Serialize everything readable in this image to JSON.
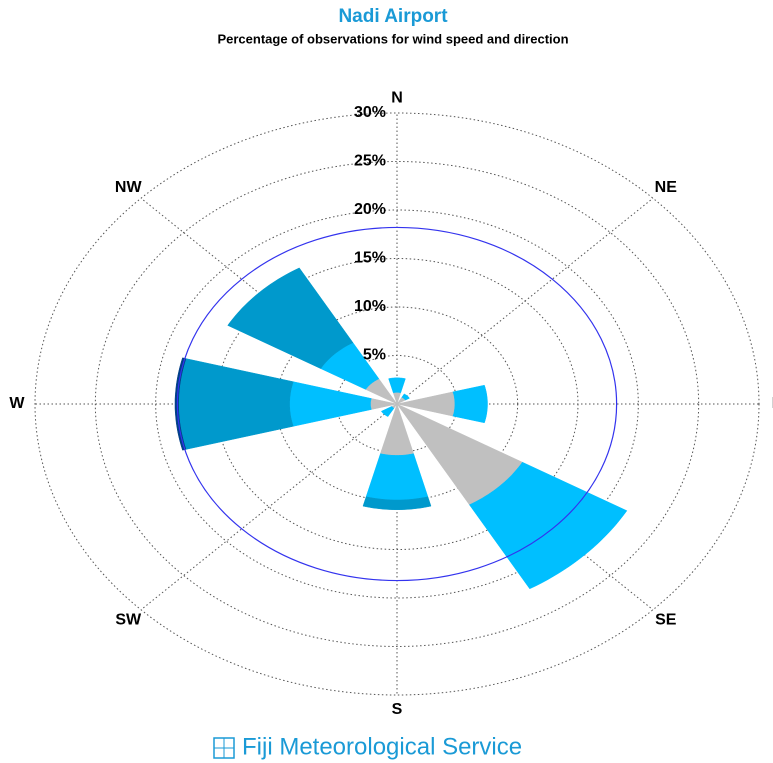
{
  "chart_data": {
    "type": "windrose",
    "title": "Nadi Airport",
    "subtitle": "Percentage of observations for wind speed and direction",
    "categories": [
      "N",
      "NE",
      "E",
      "SE",
      "S",
      "SW",
      "W",
      "NW"
    ],
    "series": [
      {
        "color": "#c0c0c0",
        "values": [
          1.2,
          0.8,
          4.8,
          12,
          5.3,
          0.5,
          2.2,
          3
        ]
      },
      {
        "color": "#00bfff",
        "values": [
          1.5,
          0.4,
          2.7,
          10,
          4.6,
          1.0,
          6.7,
          4.3
        ]
      },
      {
        "color": "#0099cc",
        "values": [
          0,
          0,
          0,
          0,
          1.0,
          0,
          9.2,
          8.9
        ]
      },
      {
        "color": "#003f88",
        "values": [
          0,
          0,
          0,
          0,
          0,
          0,
          0.3,
          0
        ]
      }
    ],
    "rlim": [
      0,
      30
    ],
    "rticks": [
      {
        "value": 5,
        "label": "5%"
      },
      {
        "value": 10,
        "label": "10%"
      },
      {
        "value": 15,
        "label": "15%"
      },
      {
        "value": 20,
        "label": "20%"
      },
      {
        "value": 25,
        "label": "25%"
      },
      {
        "value": 30,
        "label": "30%"
      }
    ],
    "reference_ring": {
      "value": 18.2,
      "color": "#3333ee"
    },
    "grid": true,
    "footer": "Fiji Meteorological Service"
  }
}
